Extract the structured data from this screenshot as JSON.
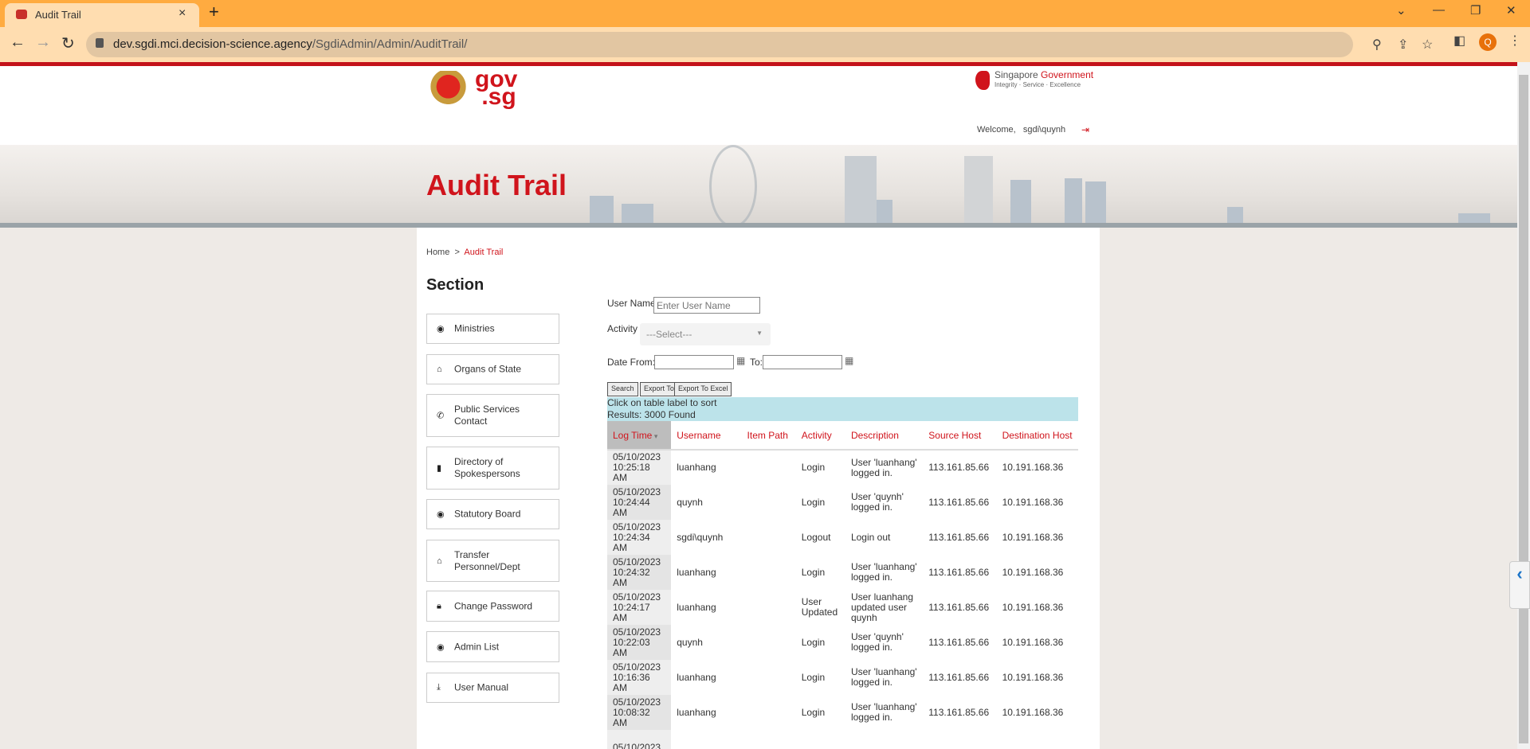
{
  "browser": {
    "tab_title": "Audit Trail",
    "url_host": "dev.sgdi.mci.decision-science.agency",
    "url_path": "/SgdiAdmin/Admin/AuditTrail/",
    "profile_initial": "Q",
    "chrome_color": "#FFAB40"
  },
  "header": {
    "logo_text": "gov.sg",
    "sg_gov_prefix": "Singapore ",
    "sg_gov_accent": "Government",
    "sg_gov_tagline": "Integrity · Service · Excellence",
    "welcome": "Welcome,   sgdi\\quynh"
  },
  "page": {
    "title": "Audit Trail",
    "accent": "#D0141C"
  },
  "breadcrumb": {
    "home": "Home",
    "sep": ">",
    "current": "Audit Trail"
  },
  "sidebar": {
    "heading": "Section",
    "items": [
      {
        "label": "Ministries",
        "icon": "stack-icon"
      },
      {
        "label": "Organs of State",
        "icon": "institution-icon"
      },
      {
        "label": "Public Services Contact",
        "icon": "phone-icon"
      },
      {
        "label": "Directory of Spokespersons",
        "icon": "microphone-icon"
      },
      {
        "label": "Statutory Board",
        "icon": "stack-icon"
      },
      {
        "label": "Transfer Personnel/Dept",
        "icon": "institution-icon"
      },
      {
        "label": "Change Password",
        "icon": "lock-icon"
      },
      {
        "label": "Admin List",
        "icon": "stack-icon"
      },
      {
        "label": "User Manual",
        "icon": "download-icon"
      }
    ]
  },
  "filters": {
    "username_label": "User Name",
    "username_placeholder": "Enter User Name",
    "activity_label": "Activity",
    "activity_selected": "---Select---",
    "date_from_label": "Date From:",
    "date_to_label": "To:",
    "search": "Search",
    "export_pdf": "Export To PDF",
    "export_excel": "Export To Excel"
  },
  "info": {
    "hint": "Click on table label to sort",
    "results": "Results: 3000 Found"
  },
  "table": {
    "columns": [
      "Log Time",
      "Username",
      "Item Path",
      "Activity",
      "Description",
      "Source Host",
      "Destination Host"
    ],
    "rows": [
      [
        "05/10/2023 10:25:18 AM",
        "luanhang",
        "",
        "Login",
        "User 'luanhang' logged in.",
        "113.161.85.66",
        "10.191.168.36"
      ],
      [
        "05/10/2023 10:24:44 AM",
        "quynh",
        "",
        "Login",
        "User 'quynh' logged in.",
        "113.161.85.66",
        "10.191.168.36"
      ],
      [
        "05/10/2023 10:24:34 AM",
        "sgdi\\quynh",
        "",
        "Logout",
        "Login out",
        "113.161.85.66",
        "10.191.168.36"
      ],
      [
        "05/10/2023 10:24:32 AM",
        "luanhang",
        "",
        "Login",
        "User 'luanhang' logged in.",
        "113.161.85.66",
        "10.191.168.36"
      ],
      [
        "05/10/2023 10:24:17 AM",
        "luanhang",
        "",
        "User Updated",
        "User luanhang updated user quynh",
        "113.161.85.66",
        "10.191.168.36"
      ],
      [
        "05/10/2023 10:22:03 AM",
        "quynh",
        "",
        "Login",
        "User 'quynh' logged in.",
        "113.161.85.66",
        "10.191.168.36"
      ],
      [
        "05/10/2023 10:16:36 AM",
        "luanhang",
        "",
        "Login",
        "User 'luanhang' logged in.",
        "113.161.85.66",
        "10.191.168.36"
      ],
      [
        "05/10/2023 10:08:32 AM",
        "luanhang",
        "",
        "Login",
        "User 'luanhang' logged in.",
        "113.161.85.66",
        "10.191.168.36"
      ],
      [
        "05/10/2023",
        "",
        "",
        "",
        "",
        "",
        ""
      ]
    ]
  }
}
